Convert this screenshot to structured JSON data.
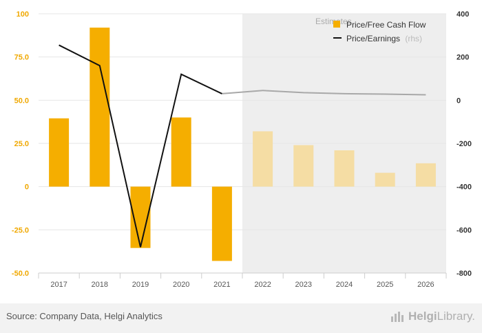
{
  "chart_data": {
    "type": "bar+line",
    "categories": [
      "2017",
      "2018",
      "2019",
      "2020",
      "2021",
      "2022",
      "2023",
      "2024",
      "2025",
      "2026"
    ],
    "estimates_label": "Estimates",
    "estimates_start_index": 5,
    "series": [
      {
        "name": "Price/Free Cash Flow",
        "type": "bar",
        "axis": "left",
        "color": "#f5ae00",
        "estimate_color": "#f5dda4",
        "values": [
          39.5,
          92,
          -35.5,
          40,
          -43,
          32,
          24,
          21,
          8,
          13.5
        ]
      },
      {
        "name": "Price/Earnings",
        "rhs_note": "(rhs)",
        "type": "line",
        "axis": "right",
        "color": "#111111",
        "estimate_color": "#a8a8a8",
        "values": [
          255,
          160,
          -680,
          120,
          30,
          45,
          35,
          30,
          28,
          25
        ]
      }
    ],
    "left_axis": {
      "min": -50,
      "max": 100,
      "ticks": [
        "100",
        "75.0",
        "50.0",
        "25.0",
        "0",
        "-25.0",
        "-50.0"
      ],
      "tick_values": [
        100,
        75,
        50,
        25,
        0,
        -25,
        -50
      ],
      "color": "#f0a800"
    },
    "right_axis": {
      "min": -800,
      "max": 400,
      "ticks": [
        "400",
        "200",
        "0",
        "-200",
        "-400",
        "-600",
        "-800"
      ],
      "tick_values": [
        400,
        200,
        0,
        -200,
        -400,
        -600,
        -800
      ],
      "color": "#333333"
    },
    "grid": true,
    "legend_position": "top-right"
  },
  "footer": {
    "source": "Source: Company Data, Helgi Analytics",
    "brand_prefix": "Helgi",
    "brand_suffix": "Library."
  }
}
